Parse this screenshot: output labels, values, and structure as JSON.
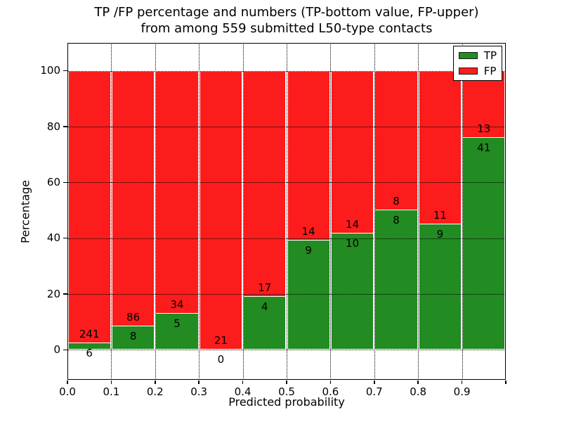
{
  "figure": {
    "title_line1": "TP /FP percentage and numbers (TP-bottom value, FP-upper)",
    "title_line2": "from among 559 submitted L50-type contacts",
    "xlabel": "Predicted probability",
    "ylabel": "Percentage"
  },
  "legend": {
    "position": "upper right",
    "items": [
      {
        "label": "TP",
        "color": "#228b22"
      },
      {
        "label": "FP",
        "color": "#fc1c1c"
      }
    ]
  },
  "chart_data": {
    "type": "bar",
    "stacked": true,
    "normalized": "each bin scaled to 100%, annotated with raw counts (TP below boundary, FP above)",
    "title": "TP /FP percentage and numbers (TP-bottom value, FP-upper) from among 559 submitted L50-type contacts",
    "xlabel": "Predicted probability",
    "ylabel": "Percentage",
    "total_contacts": 559,
    "bins": [
      "0.0-0.1",
      "0.1-0.2",
      "0.2-0.3",
      "0.3-0.4",
      "0.4-0.5",
      "0.5-0.6",
      "0.6-0.7",
      "0.7-0.8",
      "0.8-0.9",
      "0.9-1.0"
    ],
    "series": [
      {
        "name": "TP",
        "color": "#228b22",
        "counts": [
          6,
          8,
          5,
          0,
          4,
          9,
          10,
          8,
          9,
          41
        ]
      },
      {
        "name": "FP",
        "color": "#fc1c1c",
        "counts": [
          241,
          86,
          34,
          21,
          17,
          14,
          14,
          8,
          11,
          13
        ]
      }
    ],
    "tp_percent": [
      2.43,
      8.51,
      12.82,
      0.0,
      19.05,
      39.13,
      41.67,
      50.0,
      45.0,
      75.93
    ],
    "x_ticks": [
      "0.0",
      "0.1",
      "0.2",
      "0.3",
      "0.4",
      "0.5",
      "0.6",
      "0.7",
      "0.8",
      "0.9"
    ],
    "y_ticks": [
      0,
      20,
      40,
      60,
      80,
      100
    ],
    "xlim": [
      0.0,
      1.0
    ],
    "ylim": [
      -10.75,
      110
    ],
    "grid": "dotted",
    "legend_position": "upper right"
  }
}
